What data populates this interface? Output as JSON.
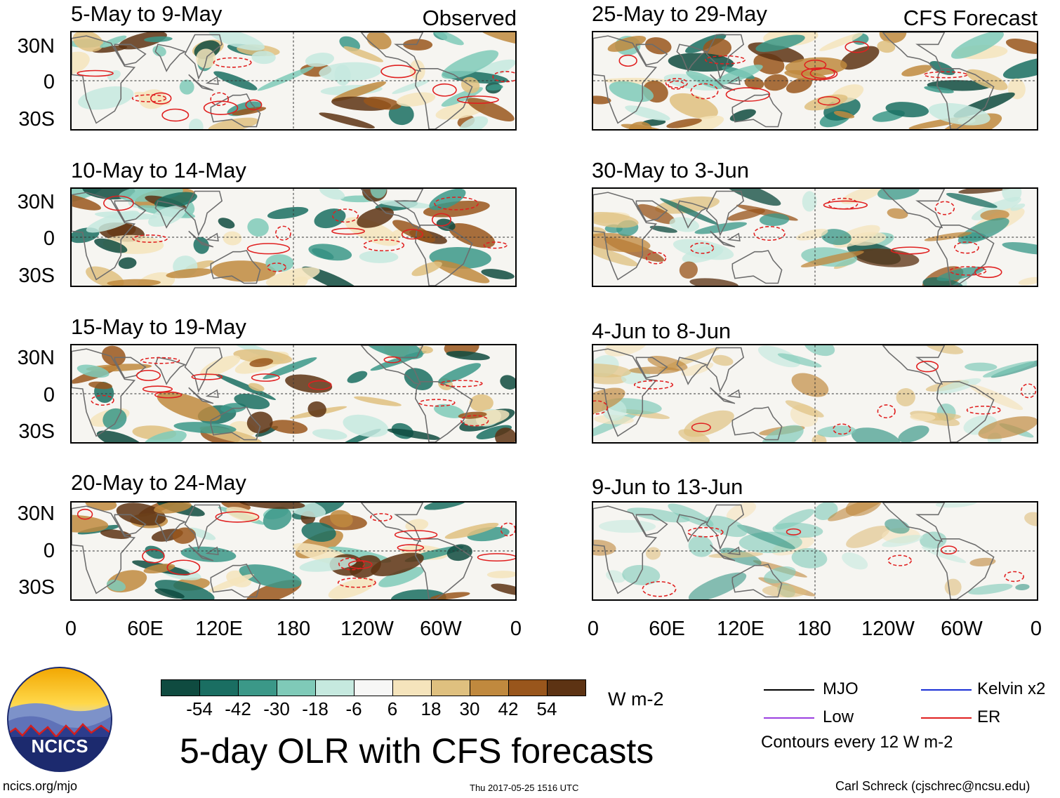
{
  "header": {
    "left_tag": "Observed",
    "right_tag": "CFS Forecast"
  },
  "panels": {
    "observed": [
      {
        "title": "5-May to 9-May"
      },
      {
        "title": "10-May to 14-May"
      },
      {
        "title": "15-May to 19-May"
      },
      {
        "title": "20-May to 24-May"
      }
    ],
    "forecast": [
      {
        "title": "25-May to 29-May"
      },
      {
        "title": "30-May to 3-Jun"
      },
      {
        "title": "4-Jun to 8-Jun"
      },
      {
        "title": "9-Jun to 13-Jun"
      }
    ]
  },
  "axes": {
    "lat_labels": [
      "30N",
      "0",
      "30S"
    ],
    "lon_labels": [
      "0",
      "60E",
      "120E",
      "180",
      "120W",
      "60W",
      "0"
    ]
  },
  "colorbar": {
    "colors": [
      "#0f4b40",
      "#1a6e62",
      "#3b9888",
      "#7fcab8",
      "#c6e9df",
      "#f7f7f6",
      "#f5e4bc",
      "#dfc07f",
      "#c0893e",
      "#99561c",
      "#5d3313"
    ],
    "ticks": [
      "-54",
      "-42",
      "-30",
      "-18",
      "-6",
      "6",
      "18",
      "30",
      "42",
      "54"
    ],
    "units": "W m-2"
  },
  "title": "5-day OLR with CFS forecasts",
  "legend": {
    "items": [
      {
        "label": "MJO",
        "color": "#000000"
      },
      {
        "label": "Kelvin x2",
        "color": "#1a2fd6"
      },
      {
        "label": "Low",
        "color": "#9b3fe0"
      },
      {
        "label": "ER",
        "color": "#e02020"
      }
    ],
    "contour_note": "Contours every 12 W m-2"
  },
  "logo": {
    "text": "NCICS"
  },
  "footer": {
    "left": "ncics.org/mjo",
    "center": "Thu 2017-05-25 1516 UTC",
    "right": "Carl Schreck (cjschrec@ncsu.edu)"
  },
  "chart_data": {
    "type": "heatmap",
    "title": "5-day OLR with CFS forecasts",
    "variable": "OLR anomaly",
    "units": "W m-2",
    "color_levels": [
      -54,
      -42,
      -30,
      -18,
      -6,
      6,
      18,
      30,
      42,
      54
    ],
    "contour_interval": "12 W m-2",
    "x_axis": {
      "ticks": [
        "0",
        "60E",
        "120E",
        "180",
        "120W",
        "60W",
        "0"
      ],
      "range_deg": [
        0,
        360
      ]
    },
    "y_axis": {
      "ticks": [
        "30N",
        "0",
        "30S"
      ],
      "range_deg": [
        -40,
        40
      ]
    },
    "columns": [
      {
        "label": "Observed",
        "periods": [
          "5-May to 9-May",
          "10-May to 14-May",
          "15-May to 19-May",
          "20-May to 24-May"
        ]
      },
      {
        "label": "CFS Forecast",
        "periods": [
          "25-May to 29-May",
          "30-May to 3-Jun",
          "4-Jun to 8-Jun",
          "9-Jun to 13-Jun"
        ]
      }
    ],
    "contour_series": [
      "MJO",
      "Kelvin x2",
      "Low",
      "ER"
    ]
  }
}
